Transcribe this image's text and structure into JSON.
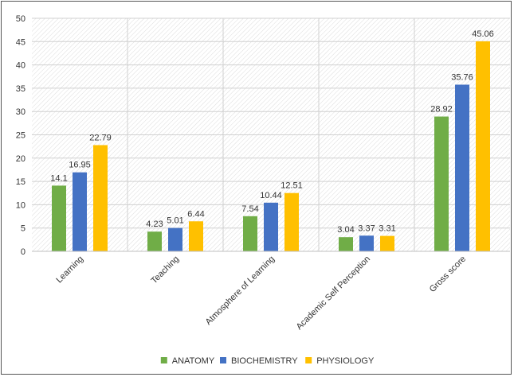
{
  "chart_data": {
    "type": "bar",
    "title": "",
    "xlabel": "",
    "ylabel": "",
    "categories": [
      "Learning",
      "Teaching",
      "Atmosphere of Learning",
      "Academic Self Perception",
      "Gross score"
    ],
    "series": [
      {
        "name": "ANATOMY",
        "color": "#70ad47",
        "values": [
          14.1,
          4.23,
          7.54,
          3.04,
          28.92
        ]
      },
      {
        "name": "BIOCHEMISTRY",
        "color": "#4472c4",
        "values": [
          16.95,
          5.01,
          10.44,
          3.37,
          35.76
        ]
      },
      {
        "name": "PHYSIOLOGY",
        "color": "#ffc000",
        "values": [
          22.79,
          6.44,
          12.51,
          3.31,
          45.06
        ]
      }
    ],
    "value_labels": [
      [
        "14.1",
        "4.23",
        "7.54",
        "3.04",
        "28.92"
      ],
      [
        "16.95",
        "5.01",
        "10.44",
        "3.37",
        "35.76"
      ],
      [
        "22.79",
        "6.44",
        "12.51",
        "3.31",
        "45.06"
      ]
    ],
    "ylim": [
      0,
      50
    ],
    "yticks": [
      "0",
      "5",
      "10",
      "15",
      "20",
      "25",
      "30",
      "35",
      "40",
      "45",
      "50"
    ],
    "grid": true,
    "legend_position": "bottom"
  }
}
